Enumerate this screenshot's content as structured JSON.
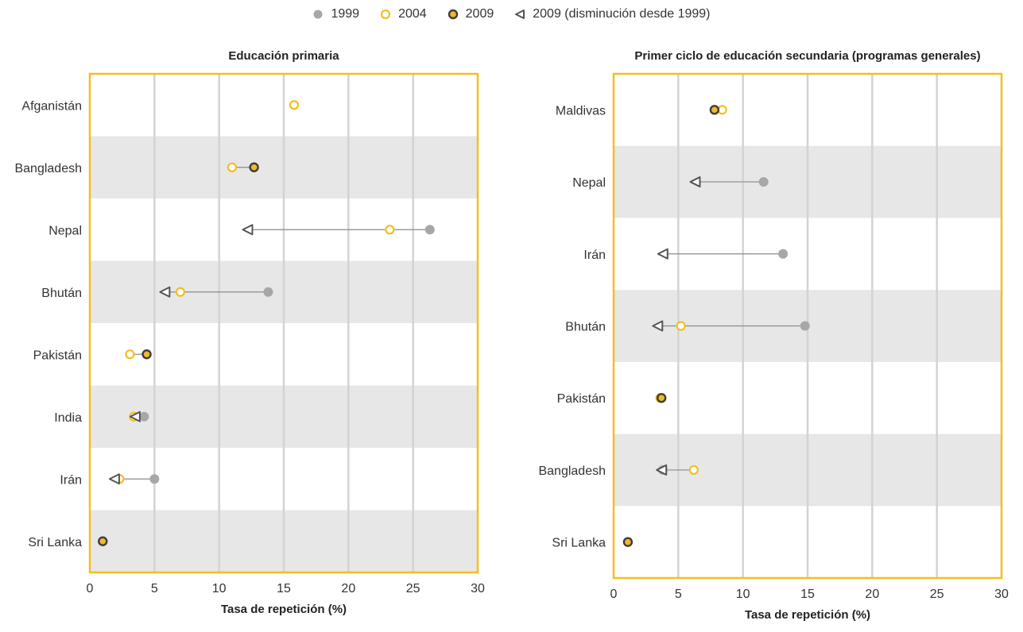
{
  "legend": [
    {
      "label": "1999",
      "key": "y1999"
    },
    {
      "label": "2004",
      "key": "y2004"
    },
    {
      "label": "2009",
      "key": "y2009"
    },
    {
      "label": "2009 (disminución desde 1999)",
      "key": "dec"
    }
  ],
  "colors": {
    "y1999": "#a7a7aa",
    "y2004_stroke": "#f5be1f",
    "y2009_fill": "#f1b92a",
    "y2009_stroke": "#3d3d3d",
    "decline": "#555555",
    "frame": "#f5be1f",
    "band": "#e6e7e6",
    "grid": "#d3d3d3"
  },
  "chart_data": [
    {
      "type": "scatter",
      "title": "Educación primaria",
      "xlabel": "Tasa de repetición (%)",
      "xlim": [
        0,
        30
      ],
      "xticks": [
        0,
        5,
        10,
        15,
        20,
        25,
        30
      ],
      "series_names": [
        "1999",
        "2004",
        "2009",
        "2009 (disminución desde 1999)"
      ],
      "rows": [
        {
          "country": "Afganistán",
          "v1999": null,
          "v2004": 15.8,
          "v2009": null,
          "decline": false
        },
        {
          "country": "Bangladesh",
          "v1999": null,
          "v2004": 11.0,
          "v2009": 12.7,
          "decline": false
        },
        {
          "country": "Nepal",
          "v1999": 26.3,
          "v2004": 23.2,
          "v2009": 12.2,
          "decline": true
        },
        {
          "country": "Bhután",
          "v1999": 13.8,
          "v2004": 7.0,
          "v2009": 5.8,
          "decline": true
        },
        {
          "country": "Pakistán",
          "v1999": null,
          "v2004": 3.1,
          "v2009": 4.4,
          "decline": false
        },
        {
          "country": "India",
          "v1999": 4.2,
          "v2004": 3.4,
          "v2009": 3.5,
          "decline": true
        },
        {
          "country": "Irán",
          "v1999": 5.0,
          "v2004": 2.3,
          "v2009": 1.9,
          "decline": true
        },
        {
          "country": "Sri Lanka",
          "v1999": null,
          "v2004": null,
          "v2009": 1.0,
          "decline": false
        }
      ]
    },
    {
      "type": "scatter",
      "title": "Primer ciclo de educación secundaria (programas generales)",
      "xlabel": "Tasa de repetición (%)",
      "xlim": [
        0,
        30
      ],
      "xticks": [
        0,
        5,
        10,
        15,
        20,
        25,
        30
      ],
      "series_names": [
        "1999",
        "2004",
        "2009",
        "2009 (disminución desde 1999)"
      ],
      "rows": [
        {
          "country": "Maldivas",
          "v1999": null,
          "v2004": 8.4,
          "v2009": 7.8,
          "decline": false
        },
        {
          "country": "Nepal",
          "v1999": 11.6,
          "v2004": null,
          "v2009": 6.3,
          "decline": true
        },
        {
          "country": "Irán",
          "v1999": 13.1,
          "v2004": null,
          "v2009": 3.8,
          "decline": true
        },
        {
          "country": "Bhután",
          "v1999": 14.8,
          "v2004": 5.2,
          "v2009": 3.4,
          "decline": true
        },
        {
          "country": "Pakistán",
          "v1999": null,
          "v2004": 3.6,
          "v2009": 3.7,
          "decline": false
        },
        {
          "country": "Bangladesh",
          "v1999": 3.8,
          "v2004": 6.2,
          "v2009": 3.7,
          "decline": true
        },
        {
          "country": "Sri Lanka",
          "v1999": null,
          "v2004": null,
          "v2009": 1.1,
          "decline": false
        }
      ]
    }
  ]
}
